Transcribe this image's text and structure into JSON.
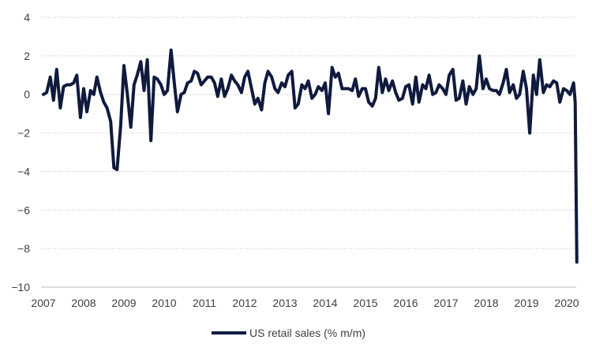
{
  "chart_data": {
    "type": "line",
    "title": "",
    "xlabel": "",
    "ylabel": "",
    "ylim": [
      -10,
      4
    ],
    "yticks": [
      4,
      2,
      0,
      -2,
      -4,
      -6,
      -8,
      -10
    ],
    "ytick_labels": [
      "4",
      "2",
      "0",
      "−2",
      "−4",
      "−6",
      "−8",
      "−10"
    ],
    "xlim": [
      2007,
      2020.25
    ],
    "xticks": [
      2007,
      2008,
      2009,
      2010,
      2011,
      2012,
      2013,
      2014,
      2015,
      2016,
      2017,
      2018,
      2019,
      2020
    ],
    "xtick_labels": [
      "2007",
      "2008",
      "2009",
      "2010",
      "2011",
      "2012",
      "2013",
      "2014",
      "2015",
      "2016",
      "2017",
      "2018",
      "2019",
      "2020"
    ],
    "grid": true,
    "legend_position": "bottom",
    "series": [
      {
        "name": "US retail sales (% m/m)",
        "color": "#0f1a3d",
        "points": [
          [
            2007.0,
            0.0
          ],
          [
            2007.08,
            0.1
          ],
          [
            2007.17,
            0.9
          ],
          [
            2007.25,
            -0.3
          ],
          [
            2007.33,
            1.3
          ],
          [
            2007.42,
            -0.7
          ],
          [
            2007.5,
            0.4
          ],
          [
            2007.58,
            0.5
          ],
          [
            2007.67,
            0.5
          ],
          [
            2007.75,
            0.6
          ],
          [
            2007.83,
            1.0
          ],
          [
            2007.92,
            -1.2
          ],
          [
            2008.0,
            0.3
          ],
          [
            2008.08,
            -0.9
          ],
          [
            2008.17,
            0.2
          ],
          [
            2008.25,
            0.0
          ],
          [
            2008.33,
            0.9
          ],
          [
            2008.42,
            0.1
          ],
          [
            2008.5,
            -0.4
          ],
          [
            2008.58,
            -0.7
          ],
          [
            2008.67,
            -1.4
          ],
          [
            2008.75,
            -3.8
          ],
          [
            2008.83,
            -3.9
          ],
          [
            2008.92,
            -1.6
          ],
          [
            2009.0,
            1.5
          ],
          [
            2009.08,
            0.1
          ],
          [
            2009.17,
            -1.7
          ],
          [
            2009.25,
            0.5
          ],
          [
            2009.33,
            1.0
          ],
          [
            2009.42,
            1.7
          ],
          [
            2009.5,
            0.2
          ],
          [
            2009.58,
            1.8
          ],
          [
            2009.67,
            -2.4
          ],
          [
            2009.75,
            0.9
          ],
          [
            2009.83,
            0.8
          ],
          [
            2009.92,
            0.5
          ],
          [
            2010.0,
            0.0
          ],
          [
            2010.08,
            0.2
          ],
          [
            2010.17,
            2.3
          ],
          [
            2010.25,
            0.6
          ],
          [
            2010.33,
            -0.9
          ],
          [
            2010.42,
            0.0
          ],
          [
            2010.5,
            0.1
          ],
          [
            2010.58,
            0.6
          ],
          [
            2010.67,
            0.7
          ],
          [
            2010.75,
            1.2
          ],
          [
            2010.83,
            1.1
          ],
          [
            2010.92,
            0.5
          ],
          [
            2011.0,
            0.7
          ],
          [
            2011.08,
            0.9
          ],
          [
            2011.17,
            0.9
          ],
          [
            2011.25,
            0.6
          ],
          [
            2011.33,
            -0.1
          ],
          [
            2011.42,
            0.8
          ],
          [
            2011.5,
            -0.1
          ],
          [
            2011.58,
            0.3
          ],
          [
            2011.67,
            1.0
          ],
          [
            2011.75,
            0.7
          ],
          [
            2011.83,
            0.5
          ],
          [
            2011.92,
            0.1
          ],
          [
            2012.0,
            0.9
          ],
          [
            2012.08,
            1.2
          ],
          [
            2012.17,
            0.3
          ],
          [
            2012.25,
            -0.5
          ],
          [
            2012.33,
            -0.2
          ],
          [
            2012.42,
            -0.8
          ],
          [
            2012.5,
            0.6
          ],
          [
            2012.58,
            1.2
          ],
          [
            2012.67,
            0.9
          ],
          [
            2012.75,
            0.3
          ],
          [
            2012.83,
            0.1
          ],
          [
            2012.92,
            0.6
          ],
          [
            2013.0,
            0.4
          ],
          [
            2013.08,
            1.0
          ],
          [
            2013.17,
            1.2
          ],
          [
            2013.25,
            -0.7
          ],
          [
            2013.33,
            -0.5
          ],
          [
            2013.42,
            0.5
          ],
          [
            2013.5,
            0.3
          ],
          [
            2013.58,
            0.7
          ],
          [
            2013.67,
            -0.2
          ],
          [
            2013.75,
            0.0
          ],
          [
            2013.83,
            0.4
          ],
          [
            2013.92,
            0.2
          ],
          [
            2014.0,
            0.6
          ],
          [
            2014.08,
            -1.0
          ],
          [
            2014.17,
            1.4
          ],
          [
            2014.25,
            0.9
          ],
          [
            2014.33,
            1.1
          ],
          [
            2014.42,
            0.3
          ],
          [
            2014.5,
            0.3
          ],
          [
            2014.58,
            0.3
          ],
          [
            2014.67,
            0.2
          ],
          [
            2014.75,
            0.8
          ],
          [
            2014.83,
            -0.1
          ],
          [
            2014.92,
            0.3
          ],
          [
            2015.0,
            0.3
          ],
          [
            2015.08,
            -0.4
          ],
          [
            2015.17,
            -0.6
          ],
          [
            2015.25,
            -0.2
          ],
          [
            2015.33,
            1.4
          ],
          [
            2015.42,
            0.1
          ],
          [
            2015.5,
            0.8
          ],
          [
            2015.58,
            0.2
          ],
          [
            2015.67,
            0.7
          ],
          [
            2015.75,
            0.1
          ],
          [
            2015.83,
            -0.3
          ],
          [
            2015.92,
            -0.2
          ],
          [
            2016.0,
            0.4
          ],
          [
            2016.08,
            0.5
          ],
          [
            2016.17,
            -0.5
          ],
          [
            2016.25,
            0.9
          ],
          [
            2016.33,
            -0.4
          ],
          [
            2016.42,
            0.5
          ],
          [
            2016.5,
            0.3
          ],
          [
            2016.58,
            1.0
          ],
          [
            2016.67,
            0.0
          ],
          [
            2016.75,
            0.1
          ],
          [
            2016.83,
            0.5
          ],
          [
            2016.92,
            0.3
          ],
          [
            2017.0,
            0.0
          ],
          [
            2017.08,
            1.0
          ],
          [
            2017.17,
            1.3
          ],
          [
            2017.25,
            -0.3
          ],
          [
            2017.33,
            -0.2
          ],
          [
            2017.42,
            0.7
          ],
          [
            2017.5,
            -0.5
          ],
          [
            2017.58,
            0.4
          ],
          [
            2017.67,
            0.0
          ],
          [
            2017.75,
            0.3
          ],
          [
            2017.83,
            2.0
          ],
          [
            2017.92,
            0.3
          ],
          [
            2018.0,
            0.8
          ],
          [
            2018.08,
            0.3
          ],
          [
            2018.17,
            0.2
          ],
          [
            2018.25,
            0.2
          ],
          [
            2018.33,
            0.0
          ],
          [
            2018.42,
            0.6
          ],
          [
            2018.5,
            1.3
          ],
          [
            2018.58,
            0.1
          ],
          [
            2018.67,
            0.5
          ],
          [
            2018.75,
            -0.2
          ],
          [
            2018.83,
            0.0
          ],
          [
            2018.92,
            1.2
          ],
          [
            2019.0,
            0.3
          ],
          [
            2019.08,
            -2.0
          ],
          [
            2019.17,
            1.0
          ],
          [
            2019.25,
            0.0
          ],
          [
            2019.33,
            1.8
          ],
          [
            2019.42,
            0.1
          ],
          [
            2019.5,
            0.5
          ],
          [
            2019.58,
            0.4
          ],
          [
            2019.67,
            0.7
          ],
          [
            2019.75,
            0.6
          ],
          [
            2019.83,
            -0.4
          ],
          [
            2019.92,
            0.3
          ],
          [
            2020.0,
            0.2
          ],
          [
            2020.08,
            0.0
          ],
          [
            2020.17,
            0.6
          ],
          [
            2020.21,
            -0.4
          ],
          [
            2020.25,
            -8.7
          ]
        ]
      }
    ]
  }
}
